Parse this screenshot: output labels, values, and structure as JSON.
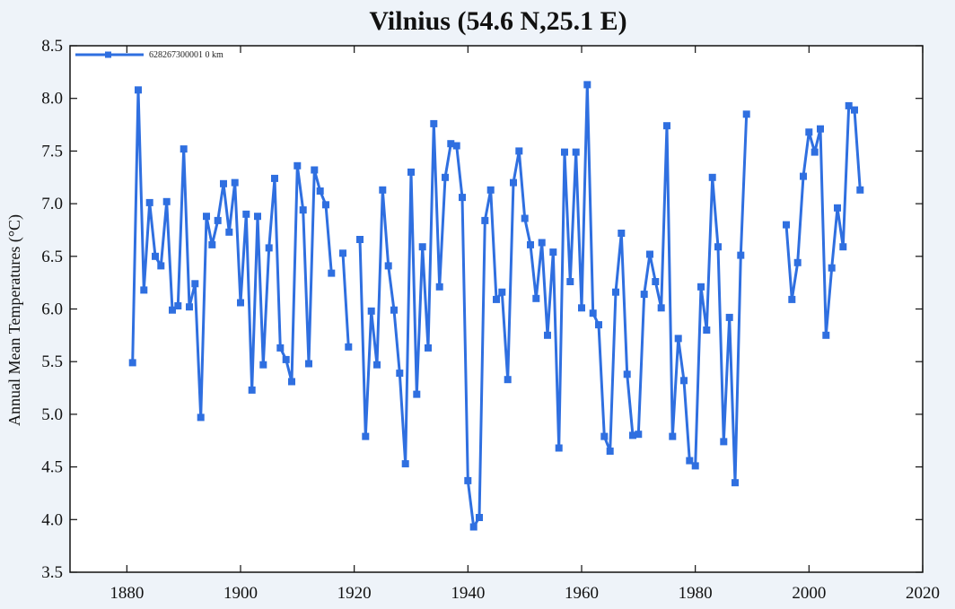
{
  "chart_data": {
    "type": "line",
    "title": "Vilnius (54.6 N,25.1 E)",
    "xlabel": "",
    "ylabel": "Annual Mean Temperatures (°C)",
    "xlim": [
      1870,
      2020
    ],
    "ylim": [
      3.5,
      8.5
    ],
    "xticks": [
      1880,
      1900,
      1920,
      1940,
      1960,
      1980,
      2000,
      2020
    ],
    "yticks": [
      "3.5",
      "4.0",
      "4.5",
      "5.0",
      "5.5",
      "6.0",
      "6.5",
      "7.0",
      "7.5",
      "8.0",
      "8.5"
    ],
    "grid": false,
    "legend_position": "top-left",
    "series": [
      {
        "name": "628267300001 0 km",
        "color": "#2f6fe0",
        "x": [
          1881,
          1882,
          1883,
          1884,
          1885,
          1886,
          1887,
          1888,
          1889,
          1890,
          1891,
          1892,
          1893,
          1894,
          1895,
          1896,
          1897,
          1898,
          1899,
          1900,
          1901,
          1902,
          1903,
          1904,
          1905,
          1906,
          1907,
          1908,
          1909,
          1910,
          1911,
          1912,
          1913,
          1914,
          1915,
          1916,
          1917,
          1918,
          1919,
          1920,
          1921,
          1922,
          1923,
          1924,
          1925,
          1926,
          1927,
          1928,
          1929,
          1930,
          1931,
          1932,
          1933,
          1934,
          1935,
          1936,
          1937,
          1938,
          1939,
          1940,
          1941,
          1942,
          1943,
          1944,
          1945,
          1946,
          1947,
          1948,
          1949,
          1950,
          1951,
          1952,
          1953,
          1954,
          1955,
          1956,
          1957,
          1958,
          1959,
          1960,
          1961,
          1962,
          1963,
          1964,
          1965,
          1966,
          1967,
          1968,
          1969,
          1970,
          1971,
          1972,
          1973,
          1974,
          1975,
          1976,
          1977,
          1978,
          1979,
          1980,
          1981,
          1982,
          1983,
          1984,
          1985,
          1986,
          1987,
          1988,
          1989,
          1990,
          1991,
          1992,
          1993,
          1994,
          1995,
          1996,
          1997,
          1998,
          1999,
          2000,
          2001,
          2002,
          2003,
          2004,
          2005,
          2006,
          2007,
          2008,
          2009
        ],
        "y": [
          5.49,
          8.08,
          6.18,
          7.01,
          6.5,
          6.41,
          7.02,
          5.99,
          6.03,
          7.52,
          6.02,
          6.24,
          4.97,
          6.88,
          6.61,
          6.84,
          7.19,
          6.73,
          7.2,
          6.06,
          6.9,
          5.23,
          6.88,
          5.47,
          6.58,
          7.24,
          5.63,
          5.52,
          5.31,
          7.36,
          6.94,
          5.48,
          7.32,
          7.12,
          6.99,
          6.34,
          null,
          6.53,
          5.64,
          null,
          6.66,
          4.79,
          5.98,
          5.47,
          7.13,
          6.41,
          5.99,
          5.39,
          4.53,
          7.3,
          5.19,
          6.59,
          5.63,
          7.76,
          6.21,
          7.25,
          7.57,
          7.55,
          7.06,
          4.37,
          3.93,
          4.02,
          6.84,
          7.13,
          6.09,
          6.16,
          5.33,
          7.2,
          7.5,
          6.86,
          6.61,
          6.1,
          6.63,
          5.75,
          6.54,
          4.68,
          7.49,
          6.26,
          7.49,
          6.01,
          8.13,
          5.96,
          5.85,
          4.79,
          4.65,
          6.16,
          6.72,
          5.38,
          4.8,
          4.81,
          6.14,
          6.52,
          6.26,
          6.01,
          7.74,
          4.79,
          5.72,
          5.32,
          4.56,
          4.51,
          6.21,
          5.8,
          7.25,
          6.59,
          4.74,
          5.92,
          4.35,
          6.51,
          7.85,
          null,
          null,
          null,
          null,
          null,
          null,
          6.8,
          6.09,
          6.44,
          7.26,
          7.68,
          7.49,
          7.71,
          5.75,
          6.39,
          6.96,
          6.59,
          7.93,
          7.89,
          7.13
        ]
      }
    ]
  }
}
